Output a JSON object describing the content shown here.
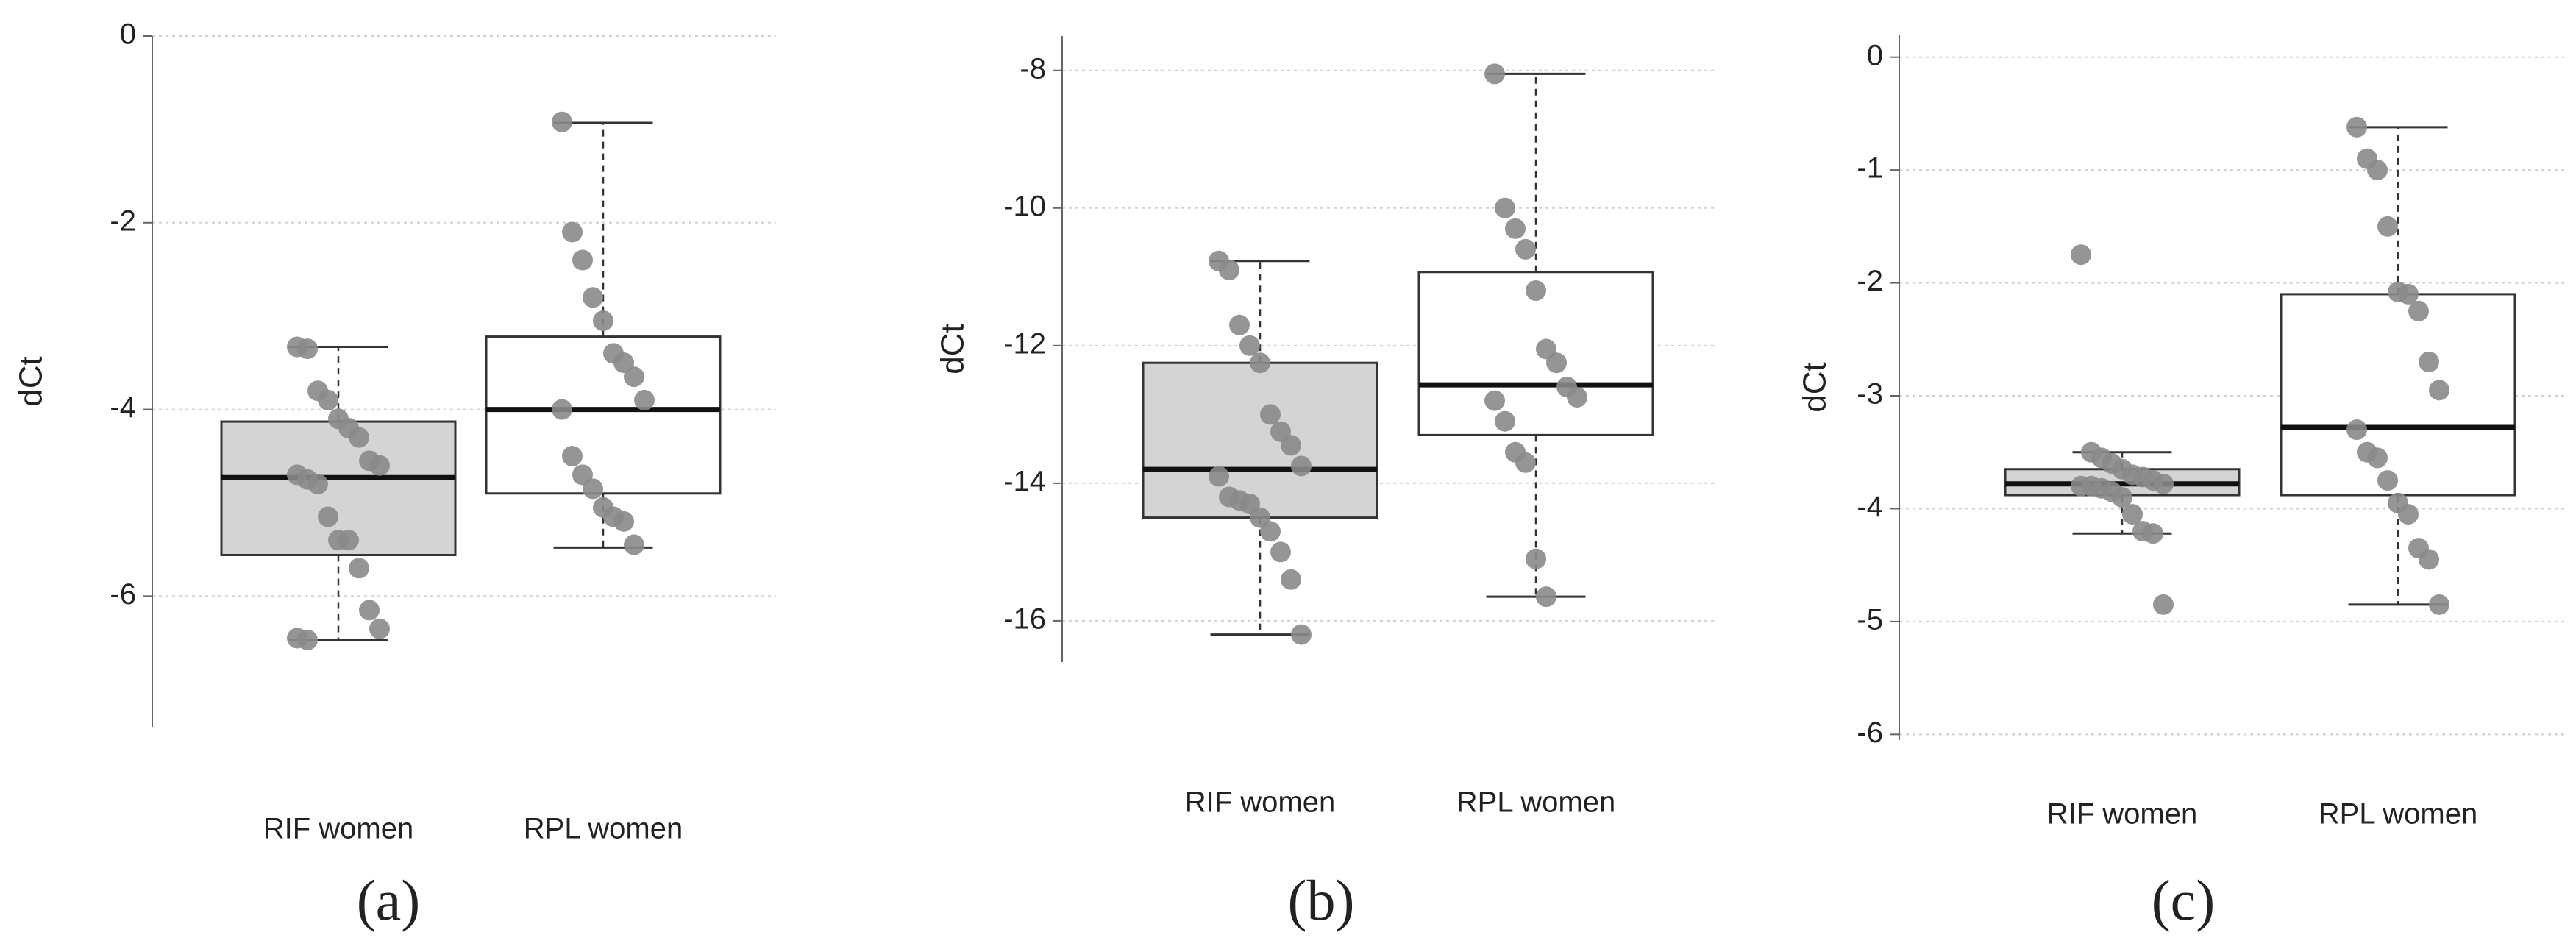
{
  "chart_data": [
    {
      "type": "box",
      "caption": "(a)",
      "ylabel": "dCt",
      "categories": [
        "RIF women",
        "RPL women"
      ],
      "ylim": [
        -7.4,
        0
      ],
      "yticks": [
        0,
        -2,
        -4,
        -6
      ],
      "grid": true,
      "boxes": [
        {
          "color": "#d4d4d4",
          "whisker_low": -6.47,
          "q1": -5.56,
          "median": -4.73,
          "q3": -4.13,
          "whisker_high": -3.33,
          "points": [
            -3.33,
            -3.35,
            -3.8,
            -3.9,
            -4.1,
            -4.2,
            -4.3,
            -4.55,
            -4.6,
            -4.7,
            -4.75,
            -4.8,
            -5.15,
            -5.4,
            -5.4,
            -5.7,
            -6.15,
            -6.35,
            -6.45,
            -6.47
          ]
        },
        {
          "color": "#ffffff",
          "whisker_low": -5.48,
          "q1": -4.9,
          "median": -4.0,
          "q3": -3.22,
          "whisker_high": -0.93,
          "points": [
            -0.92,
            -2.1,
            -2.4,
            -2.8,
            -3.05,
            -3.4,
            -3.5,
            -3.65,
            -3.9,
            -4.0,
            -4.5,
            -4.7,
            -4.85,
            -5.05,
            -5.15,
            -5.2,
            -5.45
          ]
        }
      ]
    },
    {
      "type": "box",
      "caption": "(b)",
      "ylabel": "dCt",
      "categories": [
        "RIF women",
        "RPL women"
      ],
      "ylim": [
        -16.6,
        -7.5
      ],
      "yticks": [
        -8,
        -10,
        -12,
        -14,
        -16
      ],
      "grid": true,
      "boxes": [
        {
          "color": "#d4d4d4",
          "whisker_low": -16.2,
          "q1": -14.5,
          "median": -13.8,
          "q3": -12.25,
          "whisker_high": -10.77,
          "points": [
            -10.77,
            -10.9,
            -11.7,
            -12.0,
            -12.25,
            -13.0,
            -13.25,
            -13.45,
            -13.75,
            -13.9,
            -14.2,
            -14.25,
            -14.3,
            -14.5,
            -14.7,
            -15.0,
            -15.4,
            -16.2
          ]
        },
        {
          "color": "#ffffff",
          "whisker_low": -15.65,
          "q1": -13.3,
          "median": -12.57,
          "q3": -10.93,
          "whisker_high": -8.05,
          "points": [
            -8.05,
            -10.0,
            -10.3,
            -10.6,
            -11.2,
            -12.05,
            -12.25,
            -12.6,
            -12.75,
            -12.8,
            -13.1,
            -13.55,
            -13.7,
            -15.1,
            -15.65
          ]
        }
      ]
    },
    {
      "type": "box",
      "caption": "(c)",
      "ylabel": "dCt",
      "categories": [
        "RIF women",
        "RPL women"
      ],
      "ylim": [
        -6.05,
        0.2
      ],
      "yticks": [
        0,
        -1,
        -2,
        -3,
        -4,
        -5,
        -6
      ],
      "grid": true,
      "boxes": [
        {
          "color": "#d4d4d4",
          "whisker_low": -4.22,
          "q1": -3.88,
          "median": -3.78,
          "q3": -3.65,
          "whisker_high": -3.5,
          "points": [
            -1.75,
            -3.5,
            -3.55,
            -3.6,
            -3.65,
            -3.7,
            -3.72,
            -3.75,
            -3.78,
            -3.8,
            -3.8,
            -3.82,
            -3.85,
            -3.9,
            -4.05,
            -4.2,
            -4.22,
            -4.85
          ]
        },
        {
          "color": "#ffffff",
          "whisker_low": -4.85,
          "q1": -3.88,
          "median": -3.28,
          "q3": -2.1,
          "whisker_high": -0.62,
          "points": [
            -0.62,
            -0.9,
            -1.0,
            -1.5,
            -2.08,
            -2.1,
            -2.25,
            -2.7,
            -2.95,
            -3.3,
            -3.5,
            -3.55,
            -3.75,
            -3.95,
            -4.05,
            -4.35,
            -4.45,
            -4.85
          ]
        }
      ]
    }
  ]
}
